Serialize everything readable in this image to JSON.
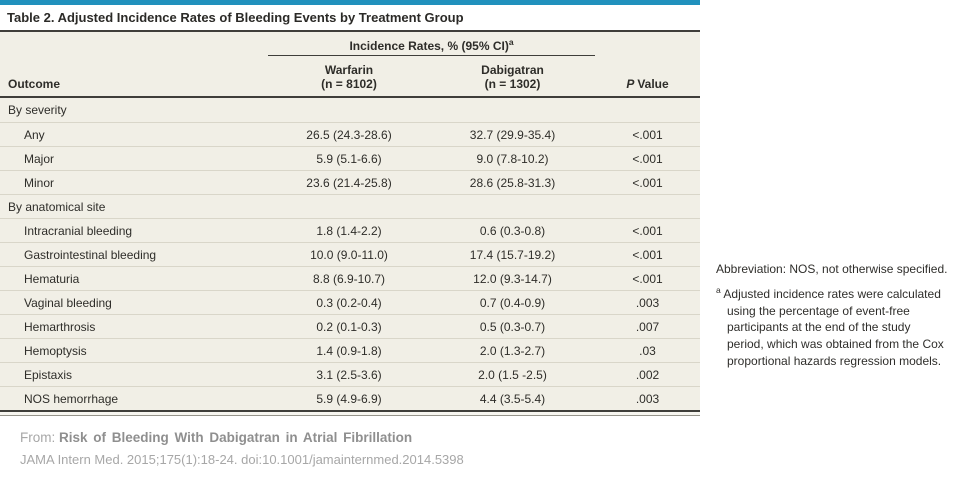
{
  "table": {
    "title": "Table 2. Adjusted Incidence Rates of Bleeding Events by Treatment Group",
    "spanner": "Incidence Rates, % (95% CI)",
    "spanner_footnote_marker": "a",
    "outcome_header": "Outcome",
    "group1": {
      "name": "Warfarin",
      "n": "(n = 8102)"
    },
    "group2": {
      "name": "Dabigatran",
      "n": "(n = 1302)"
    },
    "pvalue_header": {
      "italic": "P",
      "rest": "Value"
    },
    "rows": [
      {
        "type": "section",
        "label": "By severity",
        "warfarin": "",
        "dabigatran": "",
        "p": ""
      },
      {
        "type": "data",
        "label": "Any",
        "warfarin": "26.5 (24.3-28.6)",
        "dabigatran": "32.7 (29.9-35.4)",
        "p": "<.001"
      },
      {
        "type": "data",
        "label": "Major",
        "warfarin": "5.9 (5.1-6.6)",
        "dabigatran": "9.0 (7.8-10.2)",
        "p": "<.001"
      },
      {
        "type": "data",
        "label": "Minor",
        "warfarin": "23.6 (21.4-25.8)",
        "dabigatran": "28.6 (25.8-31.3)",
        "p": "<.001"
      },
      {
        "type": "section",
        "label": "By anatomical site",
        "warfarin": "",
        "dabigatran": "",
        "p": ""
      },
      {
        "type": "data",
        "label": "Intracranial bleeding",
        "warfarin": "1.8 (1.4-2.2)",
        "dabigatran": "0.6 (0.3-0.8)",
        "p": "<.001"
      },
      {
        "type": "data",
        "label": "Gastrointestinal bleeding",
        "warfarin": "10.0 (9.0-11.0)",
        "dabigatran": "17.4 (15.7-19.2)",
        "p": "<.001"
      },
      {
        "type": "data",
        "label": "Hematuria",
        "warfarin": "8.8 (6.9-10.7)",
        "dabigatran": "12.0 (9.3-14.7)",
        "p": "<.001"
      },
      {
        "type": "data",
        "label": "Vaginal bleeding",
        "warfarin": "0.3 (0.2-0.4)",
        "dabigatran": "0.7 (0.4-0.9)",
        "p": ".003"
      },
      {
        "type": "data",
        "label": "Hemarthrosis",
        "warfarin": "0.2 (0.1-0.3)",
        "dabigatran": "0.5 (0.3-0.7)",
        "p": ".007"
      },
      {
        "type": "data",
        "label": "Hemoptysis",
        "warfarin": "1.4 (0.9-1.8)",
        "dabigatran": "2.0 (1.3-2.7)",
        "p": ".03"
      },
      {
        "type": "data",
        "label": "Epistaxis",
        "warfarin": "3.1 (2.5-3.6)",
        "dabigatran": "2.0 (1.5 -2.5)",
        "p": ".002"
      },
      {
        "type": "data",
        "label": "NOS hemorrhage",
        "warfarin": "5.9 (4.9-6.9)",
        "dabigatran": "4.4 (3.5-5.4)",
        "p": ".003"
      }
    ]
  },
  "footnote": {
    "abbreviation": "Abbreviation: NOS, not otherwise specified.",
    "marker": "a",
    "text": "Adjusted incidence rates were calculated using the percentage of event-free participants at the end of the study period, which was obtained from the Cox proportional hazards regression models."
  },
  "citation": {
    "from_label": "From:",
    "title": "Risk of Bleeding With Dabigatran in Atrial Fibrillation",
    "reference": "JAMA Intern Med. 2015;175(1):18-24. doi:10.1001/jamainternmed.2014.5398"
  },
  "colors": {
    "accent_bar": "#2191bd",
    "panel_background": "#f1efe6",
    "dark_rule": "#3f3e3a",
    "row_separator": "#d9d6c9",
    "text_dark": "#2e2d29",
    "citation_gray": "#a7a7a7"
  }
}
